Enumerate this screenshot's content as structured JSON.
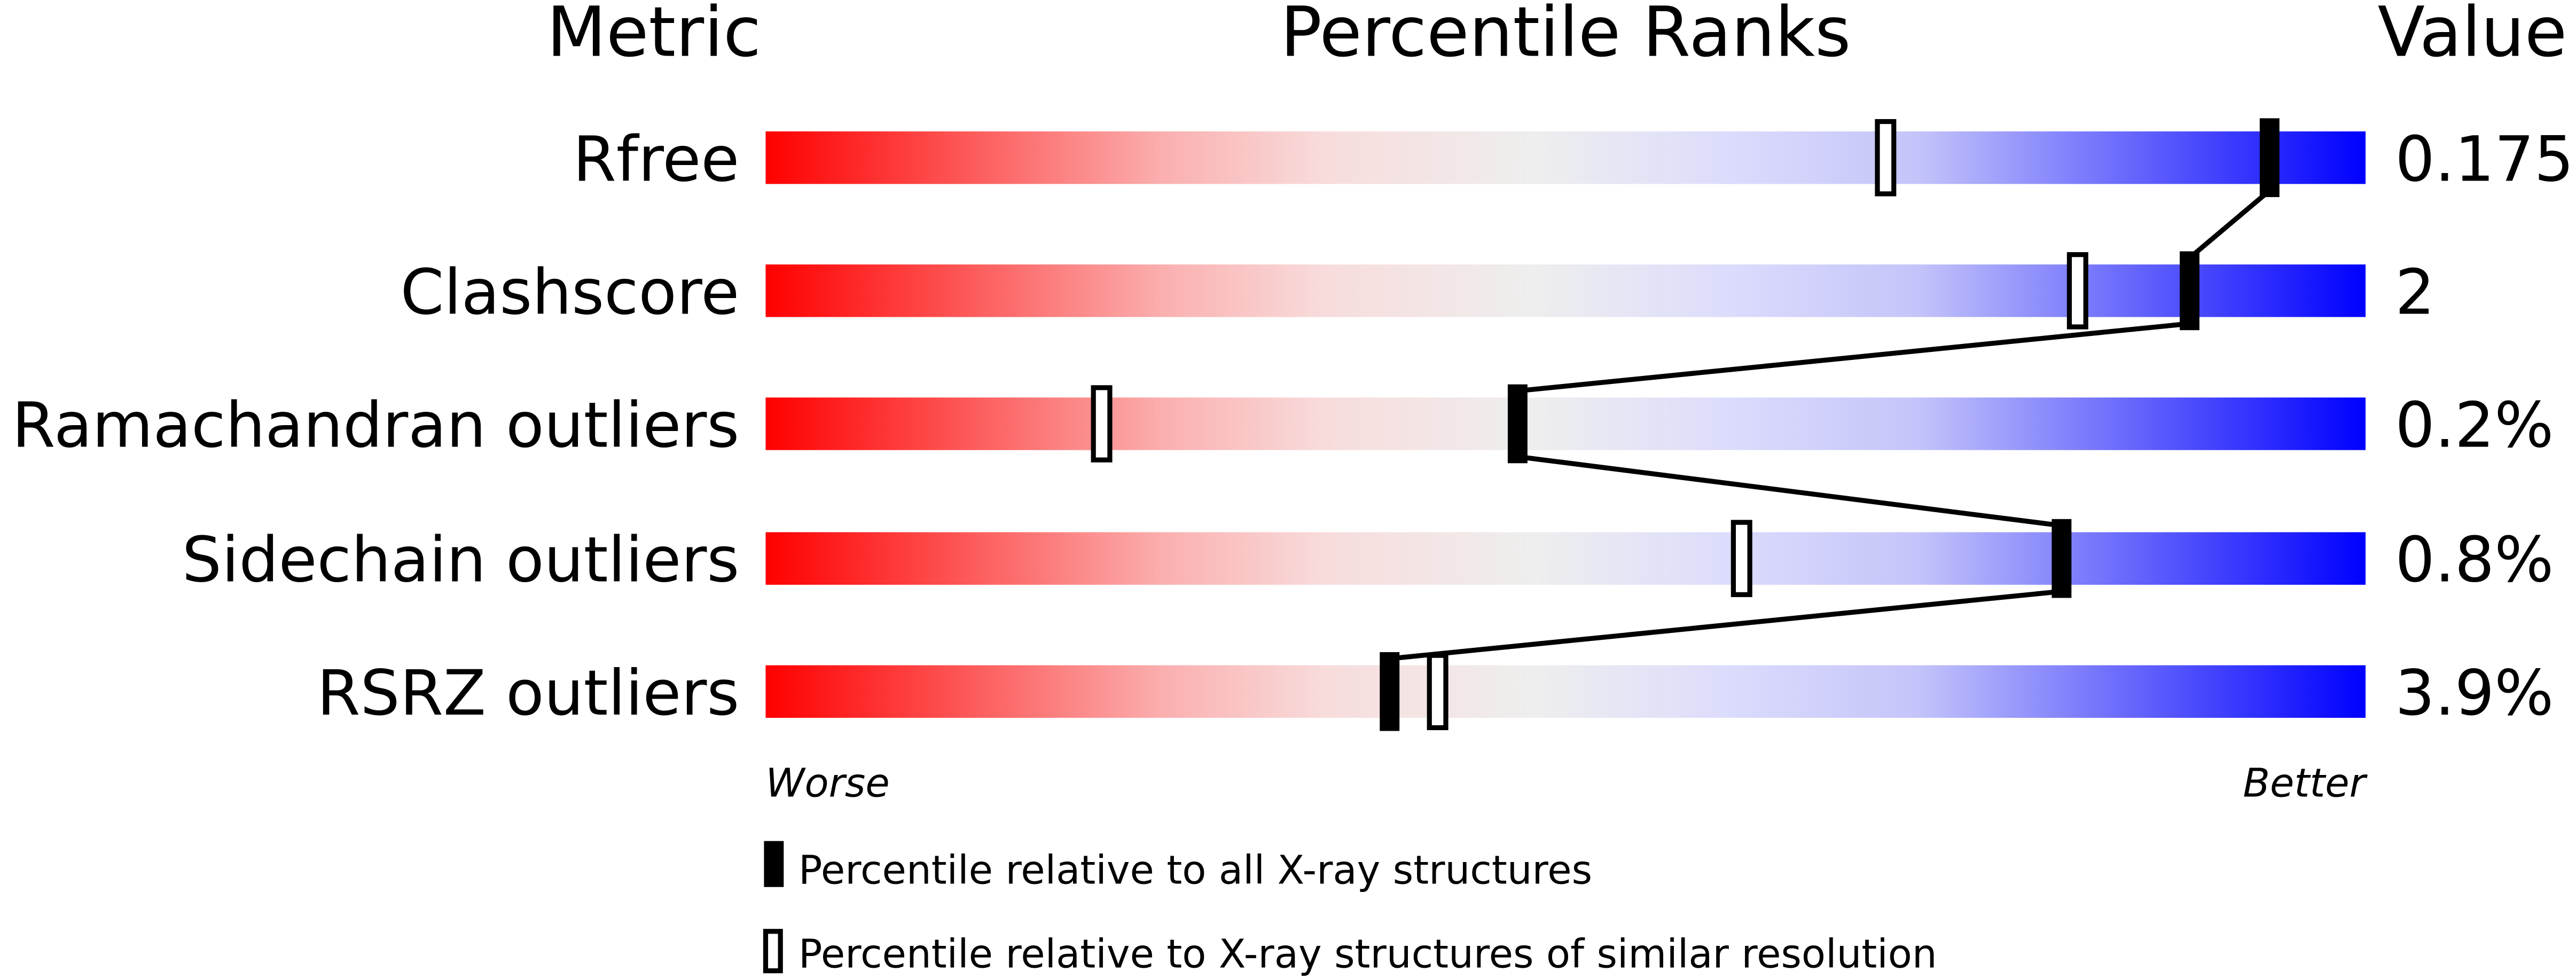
{
  "chart_data": {
    "type": "percentile-bar",
    "headers": {
      "metric": "Metric",
      "ranks": "Percentile Ranks",
      "value": "Value"
    },
    "xlim": [
      0,
      100
    ],
    "rows": [
      {
        "metric": "Rfree",
        "value": "0.175",
        "percentile_all": 94,
        "percentile_similar": 70
      },
      {
        "metric": "Clashscore",
        "value": "2",
        "percentile_all": 89,
        "percentile_similar": 82
      },
      {
        "metric": "Ramachandran outliers",
        "value": "0.2%",
        "percentile_all": 47,
        "percentile_similar": 21
      },
      {
        "metric": "Sidechain outliers",
        "value": "0.8%",
        "percentile_all": 81,
        "percentile_similar": 61
      },
      {
        "metric": "RSRZ outliers",
        "value": "3.9%",
        "percentile_all": 39,
        "percentile_similar": 42
      }
    ],
    "axis_labels": {
      "left": "Worse",
      "right": "Better"
    },
    "legend": [
      {
        "marker": "filled",
        "label": "Percentile relative to all X-ray structures"
      },
      {
        "marker": "open",
        "label": "Percentile relative to X-ray structures of similar resolution"
      }
    ],
    "colors": {
      "worse": "#ff0000",
      "middle": "#eeeeee",
      "better": "#0000ff",
      "marker": "#000000"
    }
  }
}
